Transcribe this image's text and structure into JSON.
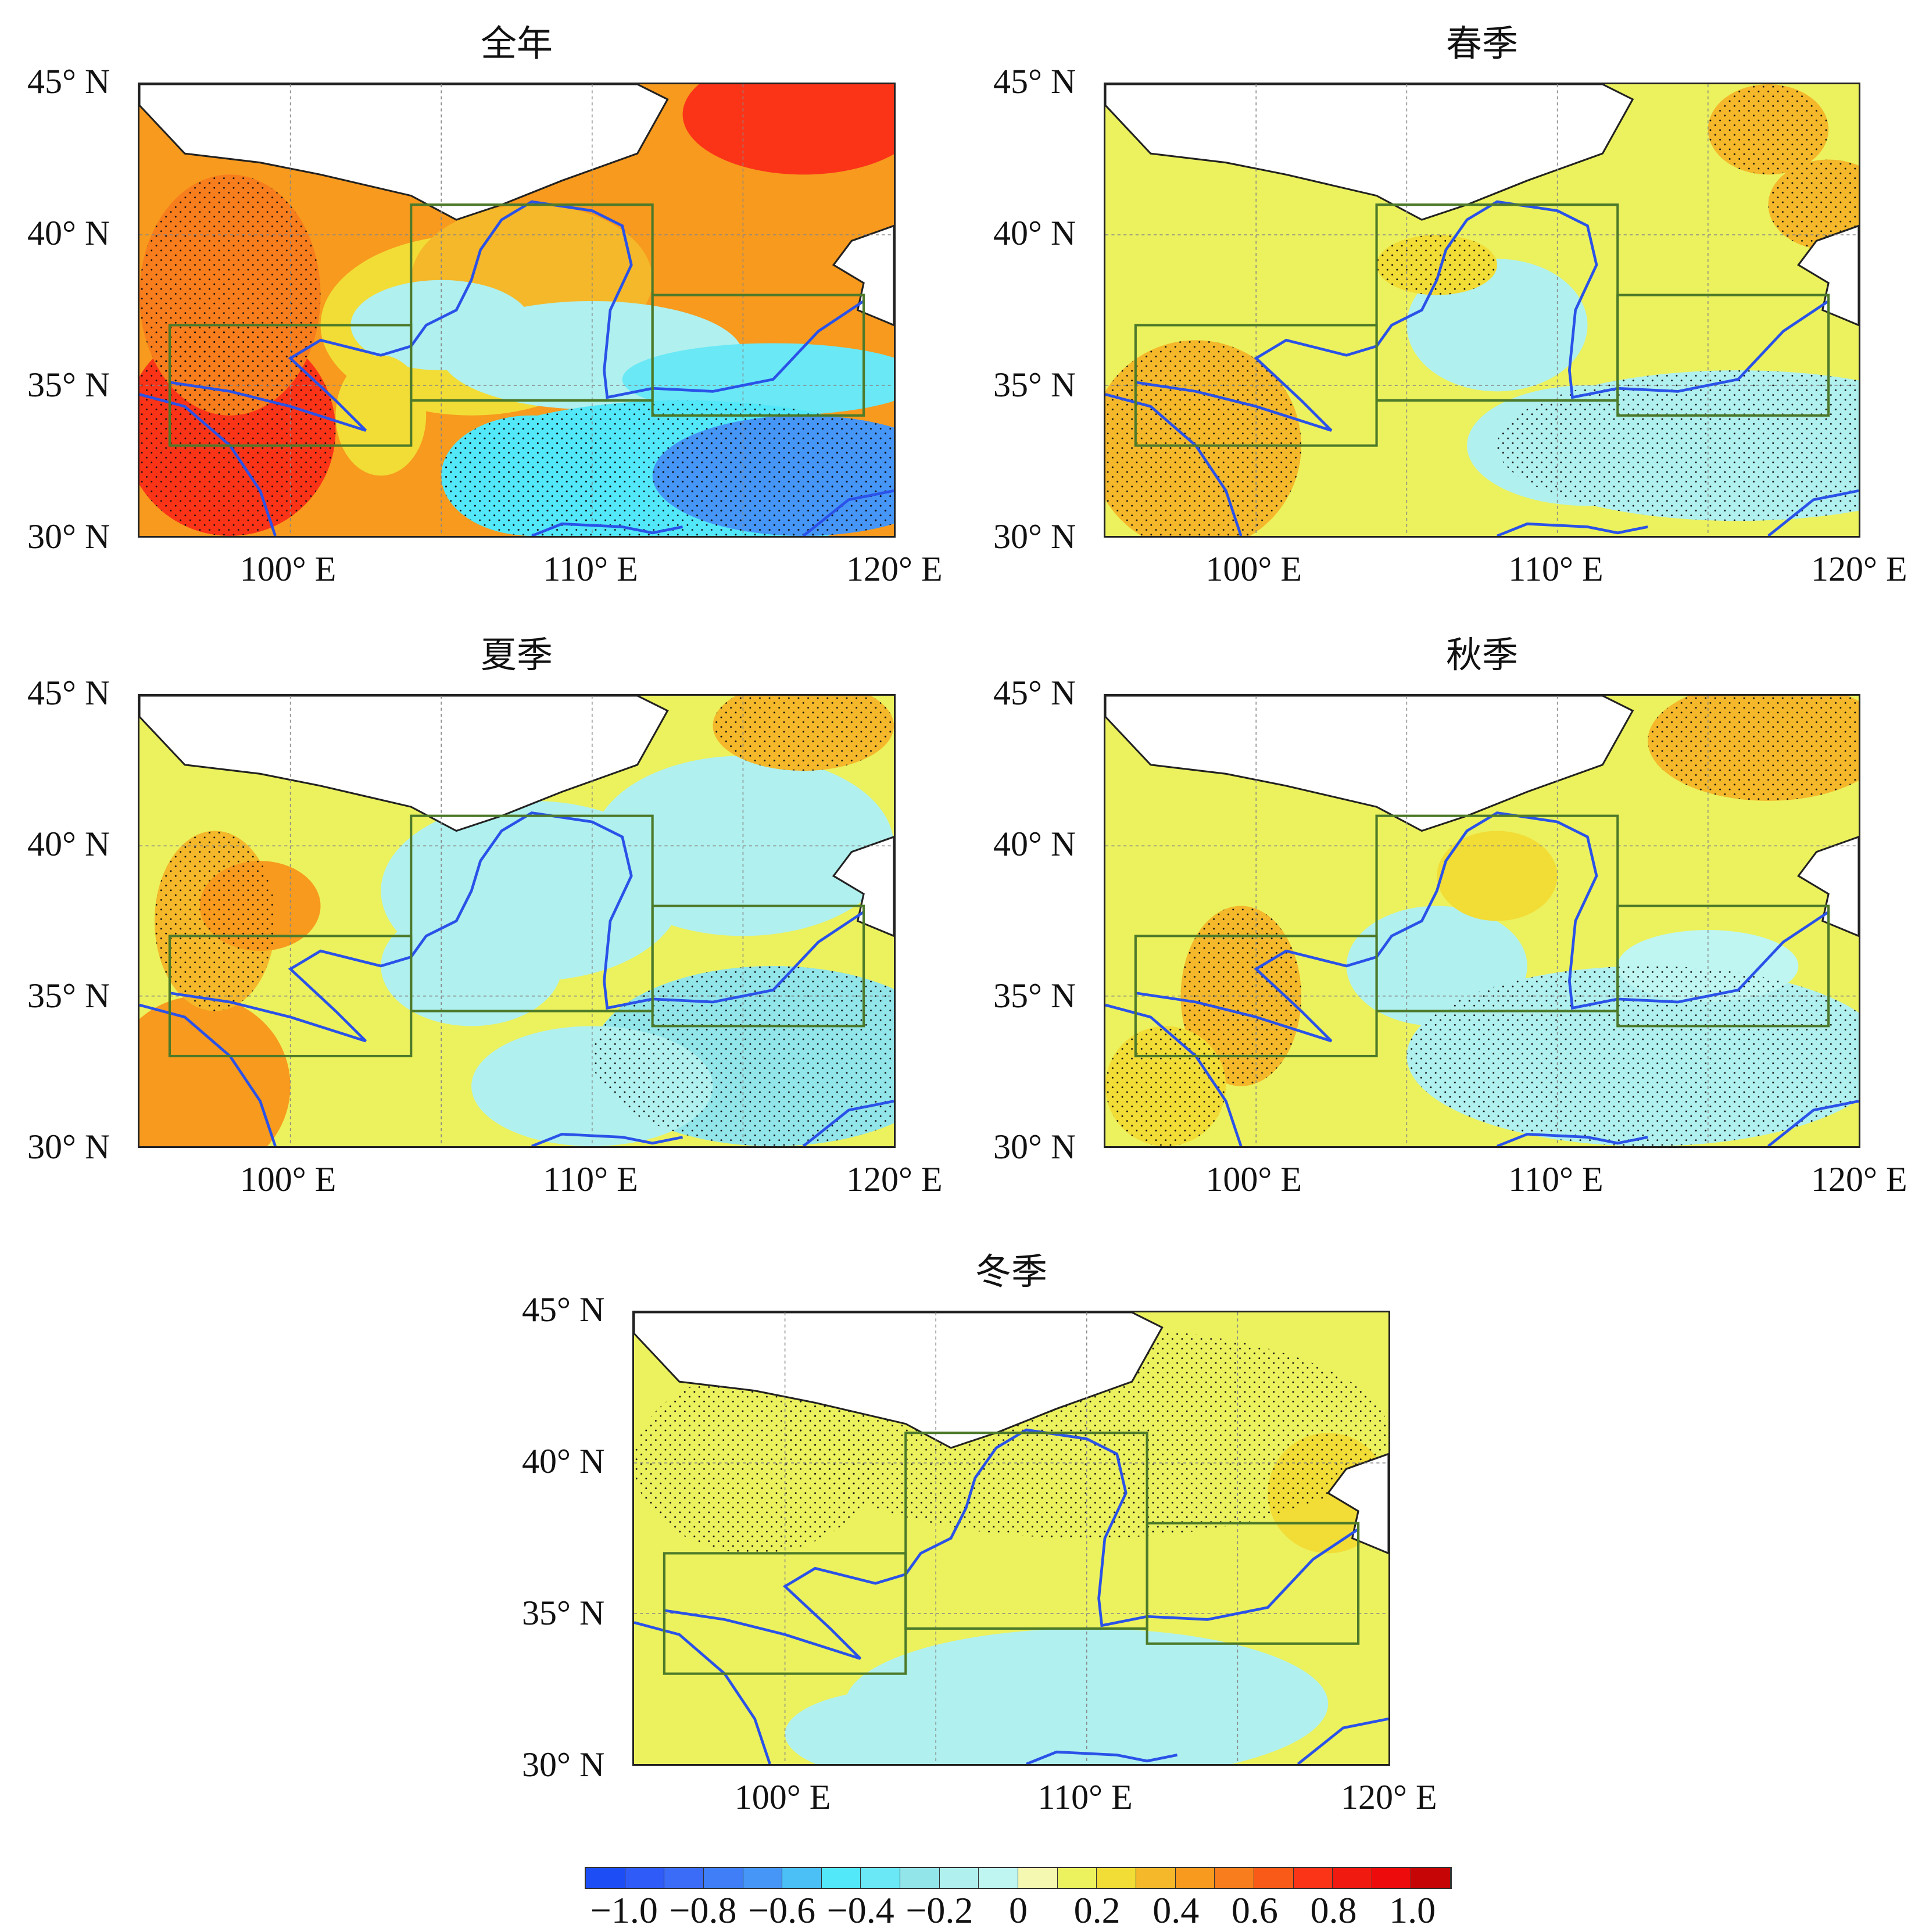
{
  "panels": [
    {
      "title": "全年",
      "key": "annual"
    },
    {
      "title": "春季",
      "key": "spring"
    },
    {
      "title": "夏季",
      "key": "summer"
    },
    {
      "title": "秋季",
      "key": "autumn"
    },
    {
      "title": "冬季",
      "key": "winter"
    }
  ],
  "axes": {
    "lon_range": [
      95,
      120
    ],
    "lat_range": [
      30,
      45
    ],
    "lat_ticks": [
      {
        "v": 45,
        "label": "45° N"
      },
      {
        "v": 40,
        "label": "40° N"
      },
      {
        "v": 35,
        "label": "35° N"
      },
      {
        "v": 30,
        "label": "30° N"
      }
    ],
    "lon_ticks": [
      {
        "v": 100,
        "label": "100° E"
      },
      {
        "v": 110,
        "label": "110° E"
      },
      {
        "v": 120,
        "label": "120° E"
      }
    ]
  },
  "regions": [
    {
      "lon": [
        96,
        104
      ],
      "lat": [
        33,
        37
      ]
    },
    {
      "lon": [
        104,
        112
      ],
      "lat": [
        34.5,
        41
      ]
    },
    {
      "lon": [
        112,
        119
      ],
      "lat": [
        34,
        38
      ]
    }
  ],
  "colorbar": {
    "labels": [
      "−1.0",
      "−0.8",
      "−0.6",
      "−0.4",
      "−0.2",
      "0",
      "0.2",
      "0.4",
      "0.6",
      "0.8",
      "1.0"
    ],
    "colors": [
      "#1d4ef5",
      "#2f5cf8",
      "#3b6cf7",
      "#3f7ef6",
      "#4696f7",
      "#4ac0f6",
      "#52e8fa",
      "#6ae8f5",
      "#92e6ea",
      "#b0f0ee",
      "#bff6f1",
      "#f4f8b0",
      "#ecf25e",
      "#f2dc36",
      "#f4b82a",
      "#f79a1e",
      "#f87d1c",
      "#f95a18",
      "#fb3418",
      "#f11a10",
      "#ed0b0b",
      "#c60606"
    ]
  },
  "colors": {
    "river": "#2a52e8",
    "region_box": "#4d7a2a",
    "coast": "#222222"
  }
}
